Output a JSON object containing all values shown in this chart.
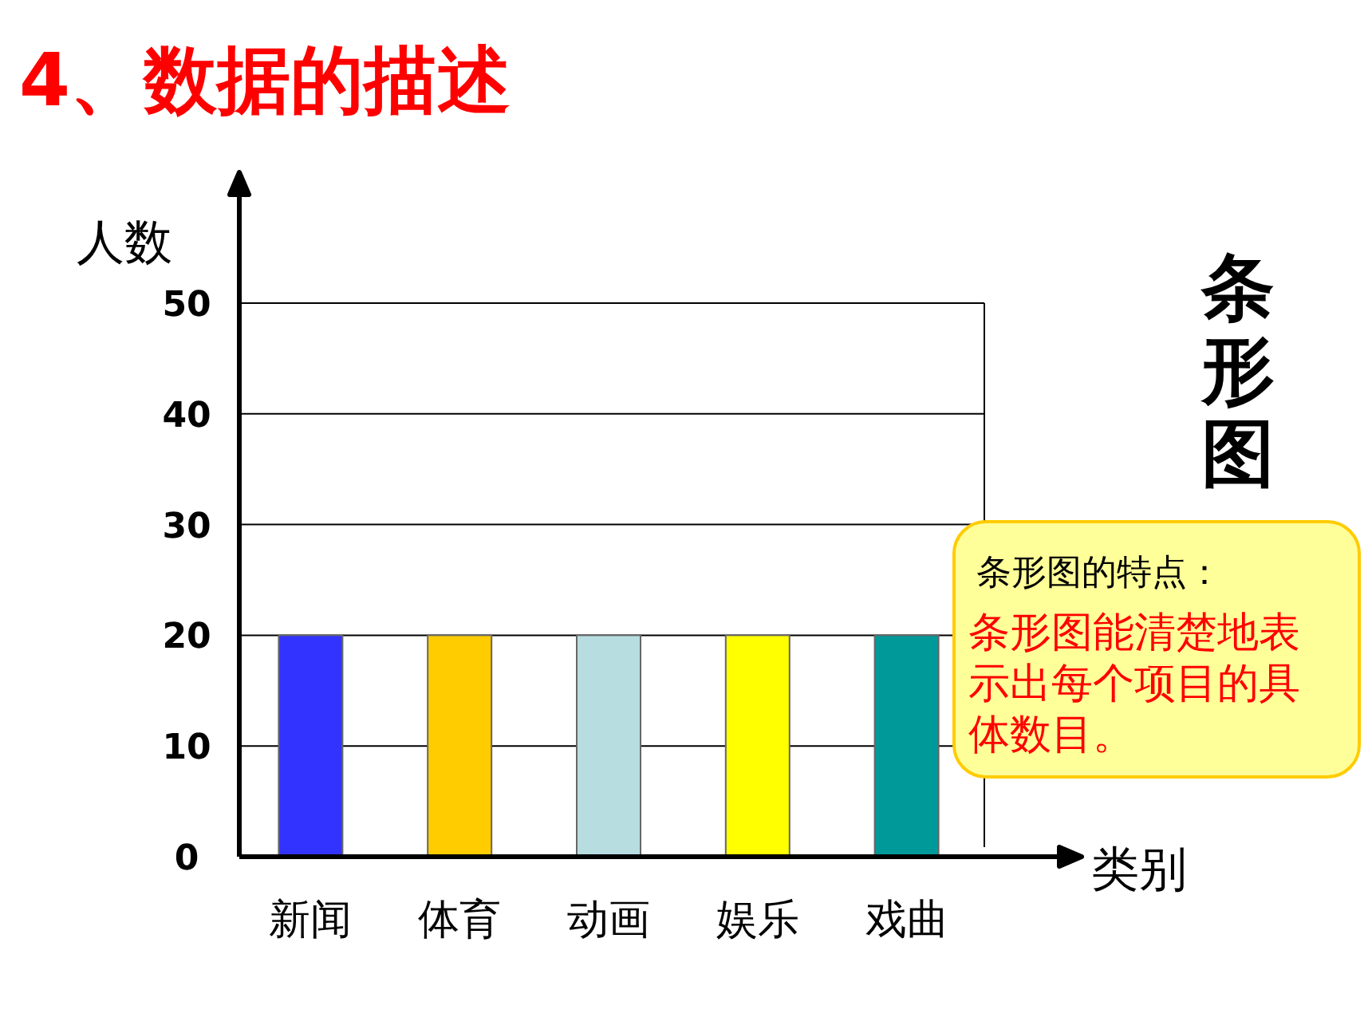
{
  "chart_data": {
    "type": "bar",
    "title": "4、数据的描述",
    "xlabel": "类别",
    "ylabel": "人数",
    "categories": [
      "新闻",
      "体育",
      "动画",
      "娱乐",
      "戏曲"
    ],
    "values": [
      20,
      20,
      20,
      20,
      20
    ],
    "colors": [
      "#3333ff",
      "#ffcc00",
      "#b7dde0",
      "#ffff00",
      "#009999"
    ],
    "ylim": [
      0,
      50
    ],
    "yticks": [
      0,
      10,
      20,
      30,
      40,
      50
    ],
    "grid": "y",
    "annotations": [
      "条形图",
      "条形图的特点：",
      "条形图能清楚地表示出每个项目的具体数目。"
    ]
  }
}
